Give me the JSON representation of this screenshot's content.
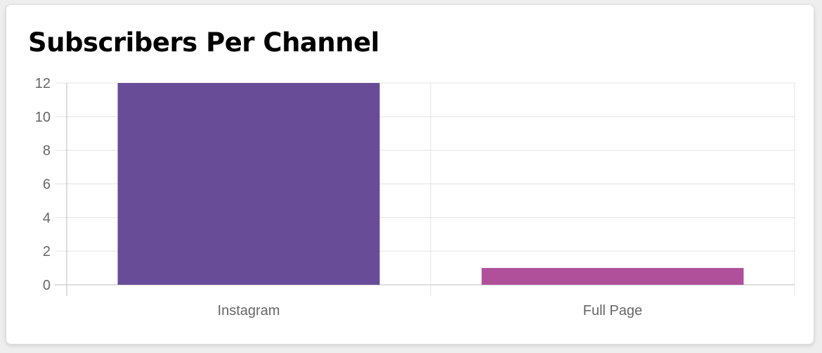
{
  "chart_data": {
    "type": "bar",
    "title": "Subscribers Per Channel",
    "categories": [
      "Instagram",
      "Full Page"
    ],
    "values": [
      12,
      1
    ],
    "bar_colors": [
      "#684C98",
      "#B0509A"
    ],
    "ylim": [
      0,
      12
    ],
    "yticks": [
      0,
      2,
      4,
      6,
      8,
      10,
      12
    ],
    "grid": true,
    "legend": "none"
  }
}
